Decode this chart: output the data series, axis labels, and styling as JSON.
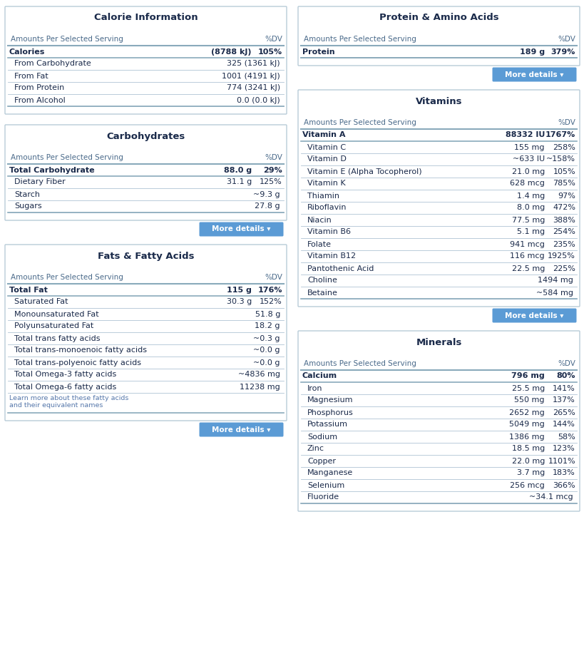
{
  "bg_color": "#ffffff",
  "box_bg": "#ffffff",
  "box_border": "#b8ccd8",
  "title_color": "#1a2a4a",
  "text_color": "#1a2a4a",
  "sub_text_color": "#4a6a8a",
  "line_color": "#b0c4d4",
  "bold_line_color": "#8aaabb",
  "btn_color": "#5b9bd5",
  "btn_text": "#ffffff",
  "note_color": "#5577aa",
  "calorie_title": "Calorie Information",
  "calorie_header": [
    "Amounts Per Selected Serving",
    "%DV"
  ],
  "calorie_rows": [
    [
      "Calories",
      "(8788 kJ)",
      "105%",
      true
    ],
    [
      "From Carbohydrate",
      "325 (1361 kJ)",
      "",
      false
    ],
    [
      "From Fat",
      "1001 (4191 kJ)",
      "",
      false
    ],
    [
      "From Protein",
      "774 (3241 kJ)",
      "",
      false
    ],
    [
      "From Alcohol",
      "0.0 (0.0 kJ)",
      "",
      false
    ]
  ],
  "calorie_btn": false,
  "protein_title": "Protein & Amino Acids",
  "protein_header": [
    "Amounts Per Selected Serving",
    "%DV"
  ],
  "protein_rows": [
    [
      "Protein",
      "189 g",
      "379%",
      true
    ]
  ],
  "protein_btn": true,
  "carb_title": "Carbohydrates",
  "carb_header": [
    "Amounts Per Selected Serving",
    "%DV"
  ],
  "carb_rows": [
    [
      "Total Carbohydrate",
      "88.0 g",
      "29%",
      true
    ],
    [
      "Dietary Fiber",
      "31.1 g",
      "125%",
      false
    ],
    [
      "Starch",
      "~9.3 g",
      "",
      false
    ],
    [
      "Sugars",
      "27.8 g",
      "",
      false
    ]
  ],
  "carb_btn": true,
  "fats_title": "Fats & Fatty Acids",
  "fats_header": [
    "Amounts Per Selected Serving",
    "%DV"
  ],
  "fats_rows": [
    [
      "Total Fat",
      "115 g",
      "176%",
      true
    ],
    [
      "Saturated Fat",
      "30.3 g",
      "152%",
      false
    ],
    [
      "Monounsaturated Fat",
      "51.8 g",
      "",
      false
    ],
    [
      "Polyunsaturated Fat",
      "18.2 g",
      "",
      false
    ],
    [
      "Total trans fatty acids",
      "~0.3 g",
      "",
      false
    ],
    [
      "Total trans-monoenoic fatty acids",
      "~0.0 g",
      "",
      false
    ],
    [
      "Total trans-polyenoic fatty acids",
      "~0.0 g",
      "",
      false
    ],
    [
      "Total Omega-3 fatty acids",
      "~4836 mg",
      "",
      false
    ],
    [
      "Total Omega-6 fatty acids",
      "11238 mg",
      "",
      false
    ]
  ],
  "fats_note": "Learn more about these fatty acids\nand their equivalent names",
  "fats_btn": true,
  "vitamins_title": "Vitamins",
  "vitamins_header": [
    "Amounts Per Selected Serving",
    "%DV"
  ],
  "vitamins_rows": [
    [
      "Vitamin A",
      "88332 IU",
      "1767%",
      true
    ],
    [
      "Vitamin C",
      "155 mg",
      "258%",
      false
    ],
    [
      "Vitamin D",
      "~633 IU",
      "~158%",
      false
    ],
    [
      "Vitamin E (Alpha Tocopherol)",
      "21.0 mg",
      "105%",
      false
    ],
    [
      "Vitamin K",
      "628 mcg",
      "785%",
      false
    ],
    [
      "Thiamin",
      "1.4 mg",
      "97%",
      false
    ],
    [
      "Riboflavin",
      "8.0 mg",
      "472%",
      false
    ],
    [
      "Niacin",
      "77.5 mg",
      "388%",
      false
    ],
    [
      "Vitamin B6",
      "5.1 mg",
      "254%",
      false
    ],
    [
      "Folate",
      "941 mcg",
      "235%",
      false
    ],
    [
      "Vitamin B12",
      "116 mcg",
      "1925%",
      false
    ],
    [
      "Pantothenic Acid",
      "22.5 mg",
      "225%",
      false
    ],
    [
      "Choline",
      "1494 mg",
      "",
      false
    ],
    [
      "Betaine",
      "~584 mg",
      "",
      false
    ]
  ],
  "vitamins_btn": true,
  "minerals_title": "Minerals",
  "minerals_header": [
    "Amounts Per Selected Serving",
    "%DV"
  ],
  "minerals_rows": [
    [
      "Calcium",
      "796 mg",
      "80%",
      true
    ],
    [
      "Iron",
      "25.5 mg",
      "141%",
      false
    ],
    [
      "Magnesium",
      "550 mg",
      "137%",
      false
    ],
    [
      "Phosphorus",
      "2652 mg",
      "265%",
      false
    ],
    [
      "Potassium",
      "5049 mg",
      "144%",
      false
    ],
    [
      "Sodium",
      "1386 mg",
      "58%",
      false
    ],
    [
      "Zinc",
      "18.5 mg",
      "123%",
      false
    ],
    [
      "Copper",
      "22.0 mg",
      "1101%",
      false
    ],
    [
      "Manganese",
      "3.7 mg",
      "183%",
      false
    ],
    [
      "Selenium",
      "256 mcg",
      "366%",
      false
    ],
    [
      "Fluoride",
      "~34.1 mcg",
      "",
      false
    ]
  ],
  "minerals_btn": false
}
